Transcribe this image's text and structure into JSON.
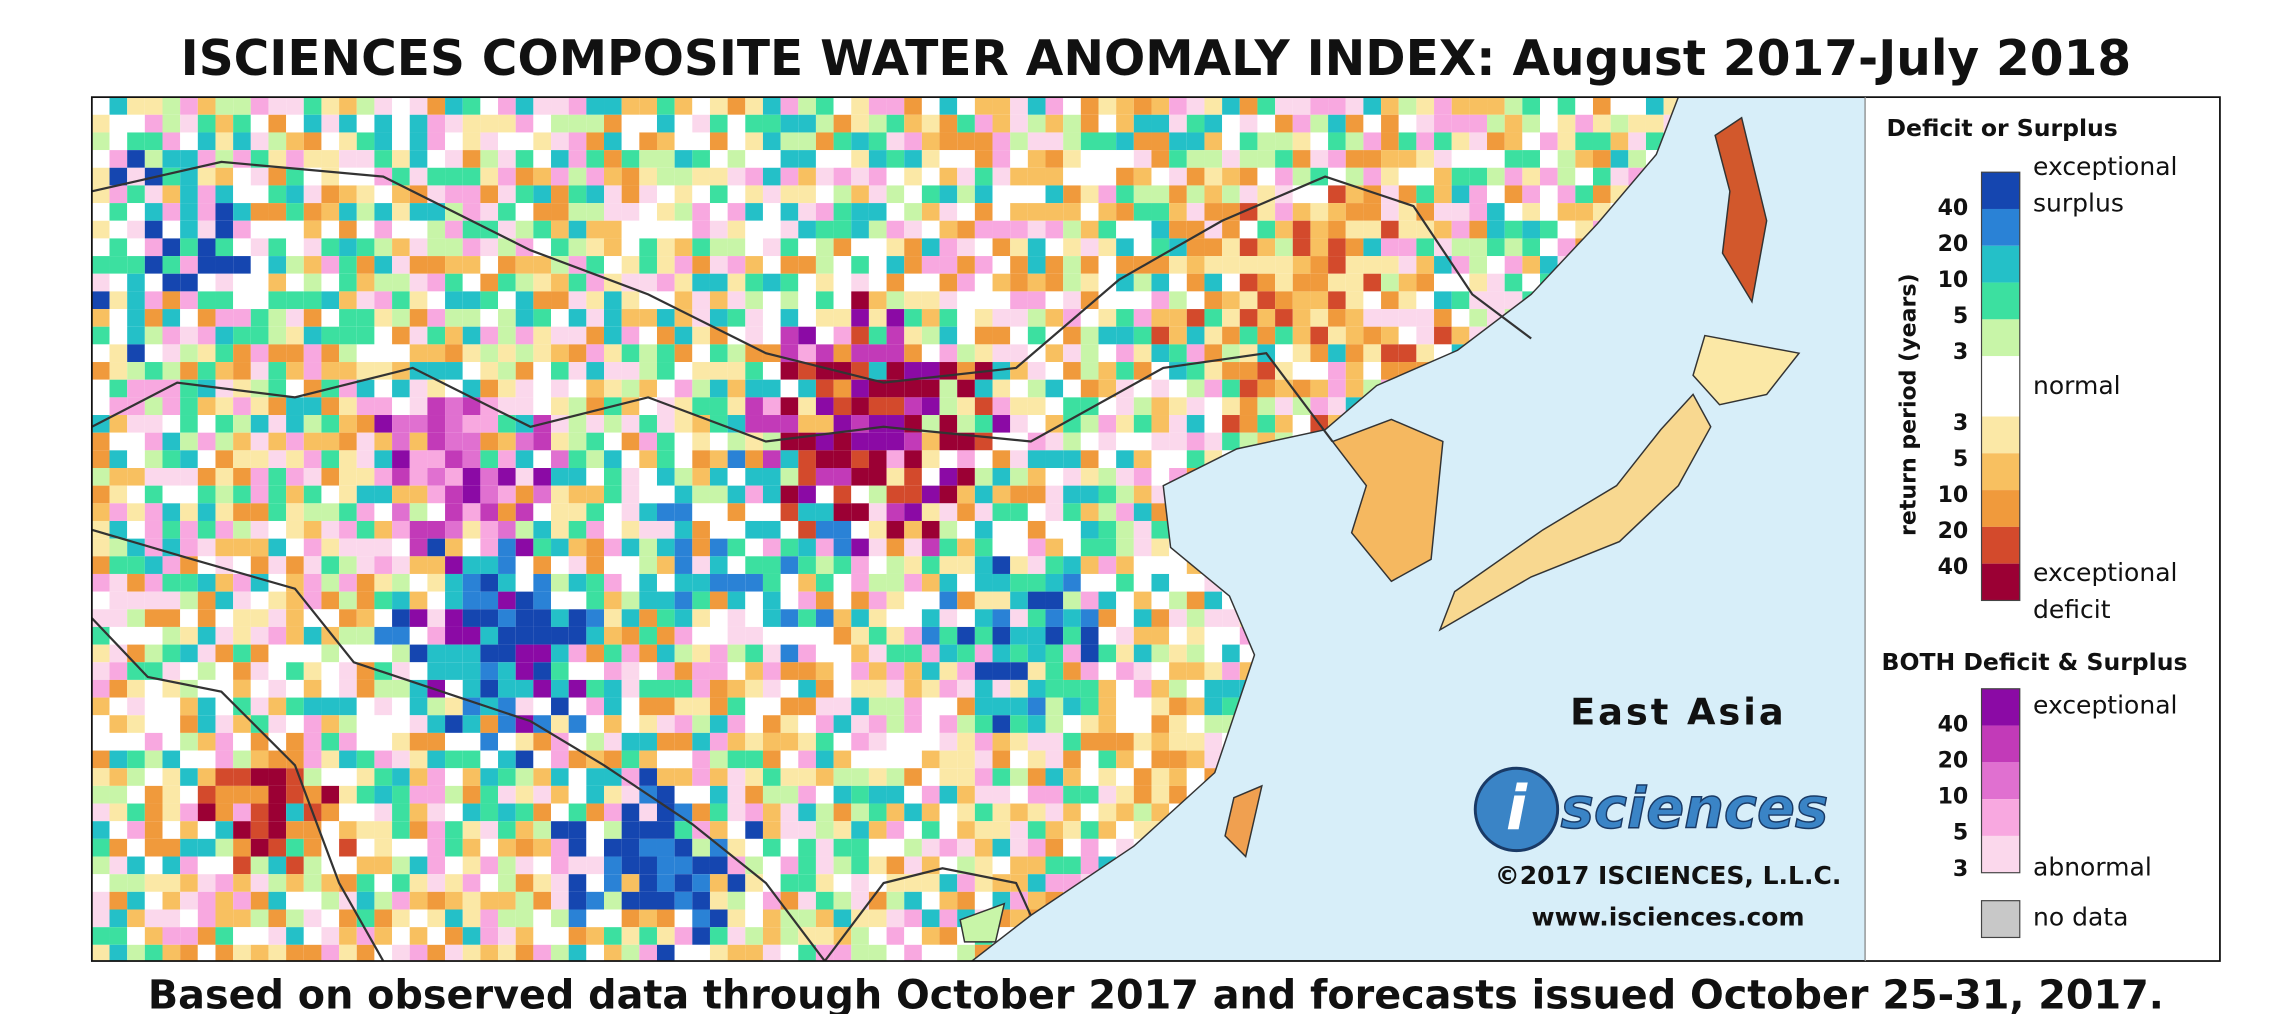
{
  "title": "ISCIENCES COMPOSITE WATER ANOMALY INDEX: August 2017-July 2018",
  "footer": "Based on observed data through October 2017 and forecasts issued October 25-31, 2017.",
  "map": {
    "region_label": "East Asia",
    "logo": {
      "letter": "i",
      "word": "sciences"
    },
    "copyright": "©2017 ISCIENCES, L.L.C.",
    "url": "www.isciences.com"
  },
  "legend": {
    "title": "Deficit or Surplus",
    "axis_label": "return period (years)",
    "surplus_ticks": [
      "40",
      "20",
      "10",
      "5",
      "3"
    ],
    "deficit_ticks": [
      "3",
      "5",
      "10",
      "20",
      "40"
    ],
    "surplus_label": [
      "exceptional",
      "surplus"
    ],
    "normal_label": "normal",
    "deficit_label": [
      "exceptional",
      "deficit"
    ],
    "both_title": "BOTH Deficit & Surplus",
    "both_ticks": [
      "40",
      "20",
      "10",
      "5",
      "3"
    ],
    "both_top_label": "exceptional",
    "both_bottom_label": "abnormal",
    "no_data_label": "no data"
  }
}
